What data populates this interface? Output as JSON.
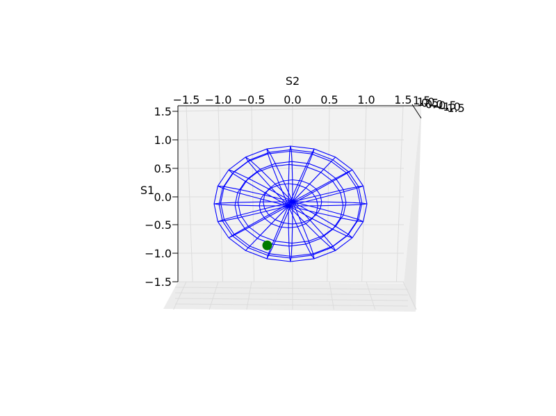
{
  "chart_data": {
    "type": "wireframe-3d",
    "xlabel": "S2",
    "ylabel": "S1",
    "zlabel": "",
    "xlim": [
      -1.5,
      1.5
    ],
    "ylim": [
      -1.5,
      1.5
    ],
    "zlim": [
      -1.5,
      1.5
    ],
    "x_ticks": [
      "−1.5",
      "−1.0",
      "−0.5",
      "0.0",
      "0.5",
      "1.0",
      "1.5"
    ],
    "y_ticks": [
      "1.5",
      "1.0",
      "0.5",
      "0.0",
      "−0.5",
      "−1.0",
      "−1.5"
    ],
    "z_ticks": [
      "1.5",
      "1.0",
      "0.5",
      "0.0",
      "−0.5",
      "−1.0",
      "−1.5"
    ],
    "grid": true,
    "surface": {
      "shape": "unit sphere wireframe",
      "radius": 1.0,
      "rings": 8,
      "meridians": 20,
      "color": "#0000ff"
    },
    "marker": {
      "S1": -0.86,
      "S2": -0.31,
      "color": "#007a00"
    }
  }
}
